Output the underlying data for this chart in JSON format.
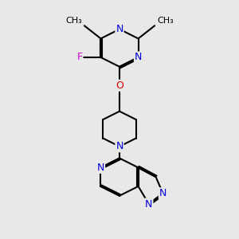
{
  "background_color": "#e8e8e8",
  "bond_color": "#000000",
  "bond_width": 1.5,
  "atom_colors": {
    "N": "#0000dd",
    "O": "#dd0000",
    "F": "#cc00cc",
    "C": "#000000"
  },
  "font_size": 9,
  "fig_size": [
    3.0,
    3.0
  ],
  "dpi": 100,
  "xlim": [
    0,
    10
  ],
  "ylim": [
    0,
    10
  ]
}
